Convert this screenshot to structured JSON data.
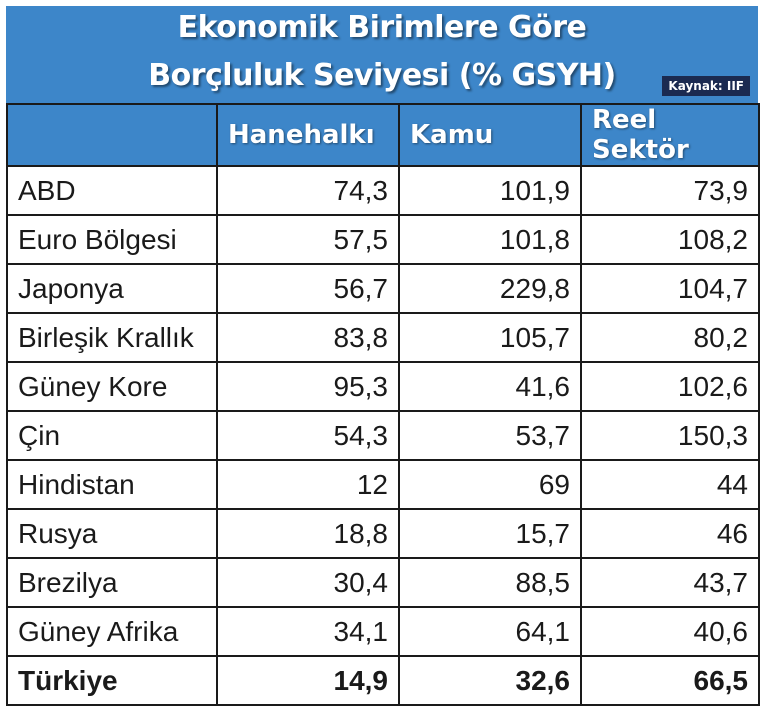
{
  "title": {
    "line1": "Ekonomik Birimlere Göre",
    "line2": "Borçluluk Seviyesi (% GSYH)",
    "source": "Kaynak: IIF"
  },
  "colors": {
    "header_bg": "#3d86c9",
    "badge_bg": "#1b2a50",
    "text": "#1a1a1a"
  },
  "chart_data": {
    "type": "table",
    "title": "Ekonomik Birimlere Göre Borçluluk Seviyesi (% GSYH)",
    "columns": [
      "",
      "Hanehalkı",
      "Kamu",
      "Reel Sektör"
    ],
    "rows": [
      {
        "label": "ABD",
        "values": [
          "74,3",
          "101,9",
          "73,9"
        ]
      },
      {
        "label": "Euro Bölgesi",
        "values": [
          "57,5",
          "101,8",
          "108,2"
        ]
      },
      {
        "label": "Japonya",
        "values": [
          "56,7",
          "229,8",
          "104,7"
        ]
      },
      {
        "label": "Birleşik Krallık",
        "values": [
          "83,8",
          "105,7",
          "80,2"
        ]
      },
      {
        "label": "Güney Kore",
        "values": [
          "95,3",
          "41,6",
          "102,6"
        ]
      },
      {
        "label": "Çin",
        "values": [
          "54,3",
          "53,7",
          "150,3"
        ]
      },
      {
        "label": "Hindistan",
        "values": [
          "12",
          "69",
          "44"
        ]
      },
      {
        "label": "Rusya",
        "values": [
          "18,8",
          "15,7",
          "46"
        ]
      },
      {
        "label": "Brezilya",
        "values": [
          "30,4",
          "88,5",
          "43,7"
        ]
      },
      {
        "label": "Güney Afrika",
        "values": [
          "34,1",
          "64,1",
          "40,6"
        ]
      },
      {
        "label": "Türkiye",
        "values": [
          "14,9",
          "32,6",
          "66,5"
        ],
        "bold": true
      }
    ]
  }
}
